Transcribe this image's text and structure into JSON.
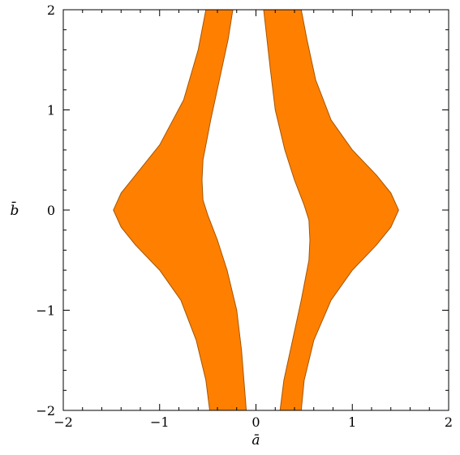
{
  "chart_data": {
    "type": "area",
    "title": "",
    "xlabel": "ā",
    "ylabel": "b̄",
    "xlim": [
      -2,
      2
    ],
    "ylim": [
      -2,
      2
    ],
    "grid": false,
    "x_ticks": [
      -2,
      -1,
      0,
      1,
      2
    ],
    "y_ticks": [
      -2,
      -1,
      0,
      1,
      2
    ],
    "x_tick_labels": [
      "−2",
      "−1",
      "0",
      "1",
      "2"
    ],
    "y_tick_labels": [
      "−2",
      "−1",
      "0",
      "1",
      "2"
    ],
    "fill_color": "#ff8000",
    "edge_color": "#a85400",
    "regions": [
      {
        "outer": [
          [
            -0.52,
            2.0
          ],
          [
            -0.6,
            1.6
          ],
          [
            -0.75,
            1.1
          ],
          [
            -1.0,
            0.65
          ],
          [
            -1.25,
            0.35
          ],
          [
            -1.4,
            0.17
          ],
          [
            -1.48,
            0.0
          ],
          [
            -1.4,
            -0.17
          ],
          [
            -1.25,
            -0.35
          ],
          [
            -1.0,
            -0.6
          ],
          [
            -0.78,
            -0.9
          ],
          [
            -0.62,
            -1.3
          ],
          [
            -0.52,
            -1.7
          ],
          [
            -0.48,
            -2.0
          ]
        ],
        "inner": [
          [
            -0.1,
            -2.0
          ],
          [
            -0.15,
            -1.4
          ],
          [
            -0.2,
            -1.0
          ],
          [
            -0.3,
            -0.6
          ],
          [
            -0.4,
            -0.3
          ],
          [
            -0.5,
            -0.05
          ],
          [
            -0.55,
            0.1
          ],
          [
            -0.56,
            0.3
          ],
          [
            -0.55,
            0.5
          ],
          [
            -0.47,
            0.9
          ],
          [
            -0.38,
            1.3
          ],
          [
            -0.29,
            1.7
          ],
          [
            -0.24,
            2.0
          ]
        ]
      },
      {
        "outer": [
          [
            0.47,
            -2.0
          ],
          [
            0.5,
            -1.7
          ],
          [
            0.6,
            -1.3
          ],
          [
            0.78,
            -0.9
          ],
          [
            1.0,
            -0.6
          ],
          [
            1.25,
            -0.35
          ],
          [
            1.4,
            -0.17
          ],
          [
            1.48,
            0.0
          ],
          [
            1.4,
            0.17
          ],
          [
            1.25,
            0.35
          ],
          [
            1.0,
            0.6
          ],
          [
            0.78,
            0.9
          ],
          [
            0.62,
            1.3
          ],
          [
            0.53,
            1.7
          ],
          [
            0.47,
            2.0
          ]
        ],
        "inner": [
          [
            0.08,
            2.0
          ],
          [
            0.15,
            1.4
          ],
          [
            0.2,
            1.0
          ],
          [
            0.3,
            0.6
          ],
          [
            0.4,
            0.3
          ],
          [
            0.5,
            0.05
          ],
          [
            0.55,
            -0.1
          ],
          [
            0.56,
            -0.3
          ],
          [
            0.55,
            -0.5
          ],
          [
            0.47,
            -0.9
          ],
          [
            0.38,
            -1.3
          ],
          [
            0.29,
            -1.7
          ],
          [
            0.25,
            -2.0
          ]
        ]
      }
    ]
  }
}
